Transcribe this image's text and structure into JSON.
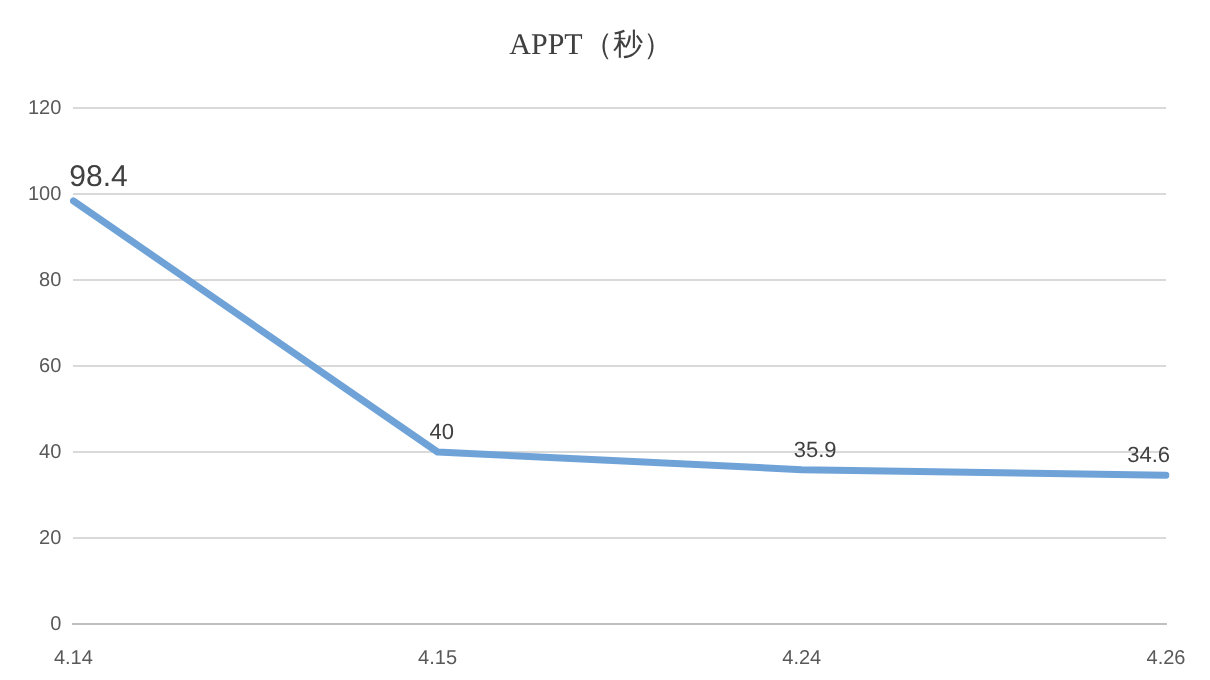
{
  "chart_data": {
    "type": "line",
    "title": "APPT（秒）",
    "categories": [
      "4.14",
      "4.15",
      "4.24",
      "4.26"
    ],
    "series": [
      {
        "color": "#6fa3d8",
        "values": [
          98.4,
          40,
          35.9,
          34.6
        ]
      }
    ],
    "ylim": [
      0,
      120
    ],
    "yticks": [
      0,
      20,
      40,
      60,
      80,
      100,
      120
    ],
    "grid": "y",
    "legend": false,
    "marker": "none",
    "line_style": "solid",
    "data_labels": true
  }
}
